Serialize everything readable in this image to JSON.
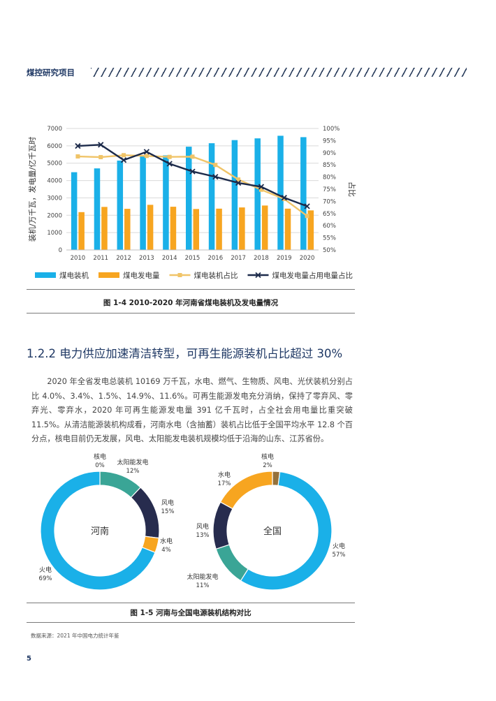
{
  "header": {
    "title": "煤控研究项目"
  },
  "figure1": {
    "caption": "图 1-4  2010-2020 年河南省煤电装机及发电量情况",
    "chart_data": {
      "type": "bar",
      "categories": [
        "2010",
        "2011",
        "2012",
        "2013",
        "2014",
        "2015",
        "2016",
        "2017",
        "2018",
        "2019",
        "2020"
      ],
      "ylabel": "装机/万千瓦，发电量/亿千瓦时",
      "y2label": "占比",
      "ylim": [
        0,
        7000
      ],
      "y_ticks": [
        "0",
        "1000",
        "2000",
        "3000",
        "4000",
        "5000",
        "6000",
        "7000"
      ],
      "y2lim": [
        50,
        100
      ],
      "y2_ticks": [
        "50%",
        "55%",
        "60%",
        "65%",
        "70%",
        "75%",
        "80%",
        "85%",
        "90%",
        "95%",
        "100%"
      ],
      "grid": true,
      "legend_position": "bottom",
      "series": [
        {
          "name": "煤电装机",
          "kind": "bar",
          "axis": "left",
          "color": "#1ab0e8",
          "values": [
            4480,
            4700,
            5150,
            5400,
            5450,
            5950,
            6150,
            6330,
            6430,
            6580,
            6500
          ]
        },
        {
          "name": "煤电发电量",
          "kind": "bar",
          "axis": "left",
          "color": "#f7a520",
          "values": [
            2180,
            2480,
            2370,
            2600,
            2490,
            2360,
            2380,
            2450,
            2560,
            2380,
            2280
          ]
        },
        {
          "name": "煤电装机占比",
          "kind": "line",
          "axis": "right",
          "color": "#f0c468",
          "marker": "square",
          "values": [
            88.5,
            88.2,
            89.0,
            88.7,
            88.3,
            88.4,
            85.0,
            79.0,
            74.8,
            71.0,
            64.0
          ]
        },
        {
          "name": "煤电发电量占用电量占比",
          "kind": "line",
          "axis": "right",
          "color": "#1c2a4a",
          "marker": "x",
          "values": [
            92.8,
            93.3,
            87.0,
            90.4,
            85.5,
            82.3,
            80.1,
            77.6,
            76.0,
            71.5,
            68.0
          ]
        }
      ]
    }
  },
  "section": {
    "title": "1.2.2  电力供应加速清洁转型，可再生能源装机占比超过 30%"
  },
  "paragraph": "2020 年全省发电总装机 10169 万千瓦，水电、燃气、生物质、风电、光伏装机分别占比 4.0%、3.4%、1.5%、14.9%、11.6%。可再生能源发电充分消纳，保持了零弃风、零弃光、零弃水，2020 年可再生能源发电量 391 亿千瓦时，占全社会用电量比重突破 11.5%。从清洁能源装机构成看，河南水电（含抽蓄）装机占比低于全国平均水平 12.8 个百分点，核电目前仍无发展，风电、太阳能发电装机规模均低于沿海的山东、江苏省份。",
  "figure2": {
    "caption": "图 1-5  河南与全国电源装机结构对比",
    "chart_data": [
      {
        "type": "pie",
        "title": "河南",
        "slices": [
          {
            "label": "核电",
            "value": 0,
            "text": "0%",
            "color": "#7a5a2a"
          },
          {
            "label": "太阳能发电",
            "value": 12,
            "text": "12%",
            "color": "#3aa596"
          },
          {
            "label": "风电",
            "value": 15,
            "text": "15%",
            "color": "#272c4e"
          },
          {
            "label": "水电",
            "value": 4,
            "text": "4%",
            "color": "#f7a520"
          },
          {
            "label": "火电",
            "value": 69,
            "text": "69%",
            "color": "#1ab0e8"
          }
        ]
      },
      {
        "type": "pie",
        "title": "全国",
        "slices": [
          {
            "label": "核电",
            "value": 2,
            "text": "2%",
            "color": "#95713a"
          },
          {
            "label": "火电",
            "value": 57,
            "text": "57%",
            "color": "#1ab0e8"
          },
          {
            "label": "太阳能发电",
            "value": 11,
            "text": "11%",
            "color": "#3aa596"
          },
          {
            "label": "风电",
            "value": 13,
            "text": "13%",
            "color": "#272c4e"
          },
          {
            "label": "水电",
            "value": 17,
            "text": "17%",
            "color": "#f7a520"
          }
        ]
      }
    ]
  },
  "source": "数据来源：2021 年中国电力统计年鉴",
  "page_number": "5"
}
